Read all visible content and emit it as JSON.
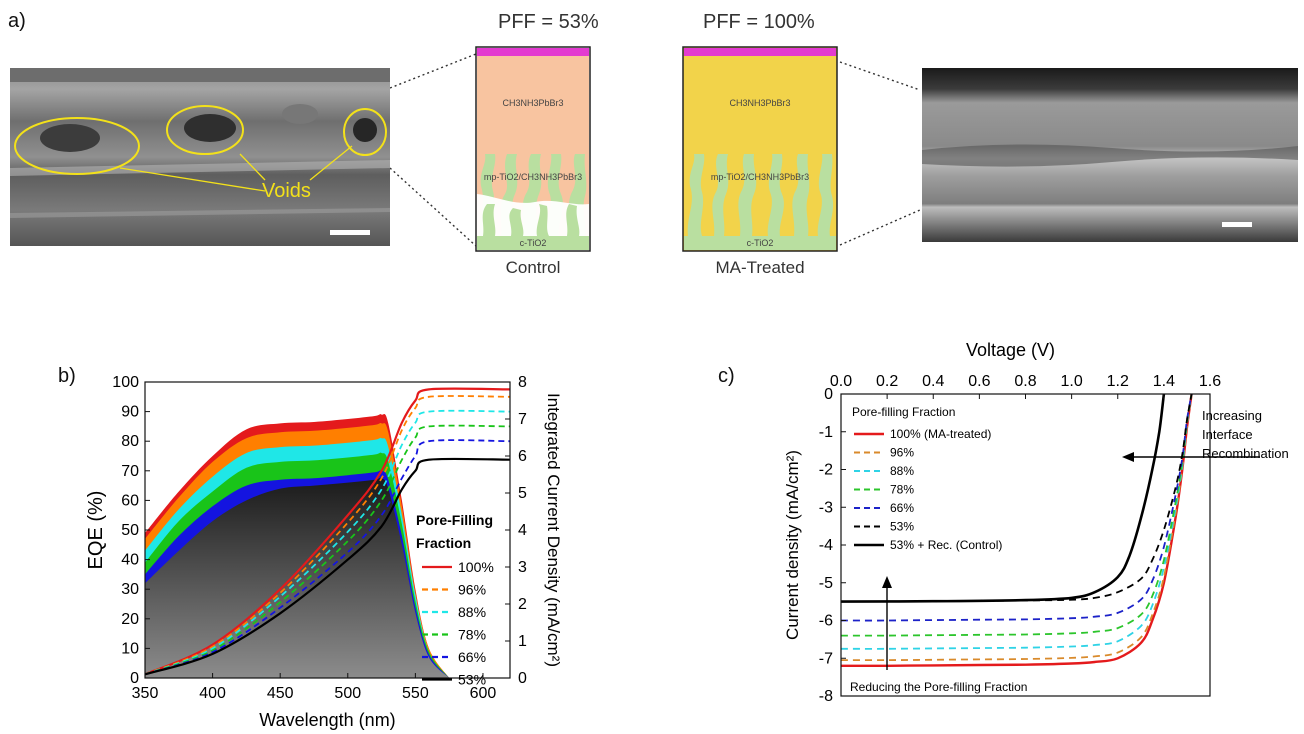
{
  "panel_a": {
    "label": "a)",
    "voids_label": "Voids",
    "pff_control": "PFF = 53%",
    "pff_treated": "PFF = 100%",
    "layer_top": "CH3NH3PbBr3",
    "layer_mid": "mp-TiO2/CH3NH3PbBr3",
    "layer_bottom": "c-TiO2",
    "control_caption": "Control",
    "treated_caption": "MA-Treated",
    "colors": {
      "perovskite_control": "#f8c4a0",
      "perovskite_treated": "#f2d34a",
      "tio2": "#b9dfa0",
      "contact": "#e33ad0",
      "voids": "#f3e11a"
    }
  },
  "panel_b": {
    "label": "b)",
    "xlabel": "Wavelength (nm)",
    "ylabel_left": "EQE (%)",
    "ylabel_right": "Integrated Current Density (mA/cm²)",
    "x_ticks": [
      "350",
      "400",
      "450",
      "500",
      "550",
      "600"
    ],
    "y_left_ticks": [
      "0",
      "10",
      "20",
      "30",
      "40",
      "50",
      "60",
      "70",
      "80",
      "90",
      "100"
    ],
    "y_right_ticks": [
      "0",
      "1",
      "2",
      "3",
      "4",
      "5",
      "6",
      "7",
      "8"
    ],
    "legend_title_1": "Pore-Filling",
    "legend_title_2": "Fraction",
    "legend": [
      "100%",
      "96%",
      "88%",
      "78%",
      "66%",
      "53%"
    ],
    "colors": [
      "#e41a1c",
      "#ff7f00",
      "#1fe7e7",
      "#19c419",
      "#1414e0",
      "#000000"
    ]
  },
  "panel_c": {
    "label": "c)",
    "xlabel": "Voltage (V)",
    "ylabel": "Current density (mA/cm²)",
    "x_ticks": [
      "0.0",
      "0.2",
      "0.4",
      "0.6",
      "0.8",
      "1.0",
      "1.2",
      "1.4",
      "1.6"
    ],
    "y_ticks": [
      "0",
      "-1",
      "-2",
      "-3",
      "-4",
      "-5",
      "-6",
      "-7",
      "-8"
    ],
    "legend_title": "Pore-filling Fraction",
    "legend": [
      "100% (MA-treated)",
      "96%",
      "88%",
      "78%",
      "66%",
      "53%",
      "53% + Rec. (Control)"
    ],
    "annotation_recombination": [
      "Increasing",
      "Interface",
      "Recombination"
    ],
    "annotation_pore": "Reducing the Pore-filling Fraction",
    "colors": [
      "#e41a1c",
      "#d98a2b",
      "#2fd3e6",
      "#2cc52c",
      "#1c22c8",
      "#000000",
      "#000000"
    ]
  },
  "chart_data": [
    {
      "type": "area",
      "xlabel": "Wavelength (nm)",
      "ylabel": "EQE (%)",
      "xlim": [
        350,
        620
      ],
      "ylim": [
        0,
        100
      ],
      "x": [
        350,
        375,
        400,
        425,
        450,
        475,
        500,
        520,
        525,
        530,
        540,
        550,
        560,
        575
      ],
      "series": [
        {
          "name": "100%",
          "values": [
            49,
            63,
            75,
            84,
            86,
            86.5,
            87.5,
            88.5,
            89,
            86,
            60,
            30,
            10,
            0
          ]
        },
        {
          "name": "96%",
          "values": [
            47,
            61,
            73,
            81,
            83,
            83.5,
            84.5,
            85.5,
            86,
            83,
            58,
            29,
            10,
            0
          ]
        },
        {
          "name": "88%",
          "values": [
            43,
            57,
            68,
            76,
            78,
            78.5,
            79.5,
            80.5,
            81,
            78,
            55,
            28,
            9,
            0
          ]
        },
        {
          "name": "78%",
          "values": [
            39,
            53,
            63,
            71,
            73,
            73.5,
            74.5,
            75.5,
            76,
            73,
            52,
            26,
            9,
            0
          ]
        },
        {
          "name": "66%",
          "values": [
            35,
            48,
            58,
            65,
            67,
            67.5,
            68.5,
            69.5,
            70,
            67,
            48,
            24,
            8,
            0
          ]
        },
        {
          "name": "53%",
          "values": [
            32,
            43,
            53,
            60,
            64,
            65,
            66,
            67,
            67.5,
            64,
            45,
            22,
            7,
            0
          ]
        }
      ],
      "integrated_current_mA_cm2": {
        "ylim": [
          0,
          8
        ],
        "x": [
          350,
          400,
          450,
          500,
          525,
          540,
          550,
          560,
          620
        ],
        "series": [
          {
            "name": "100%",
            "values": [
              0.1,
              0.9,
              2.4,
              4.4,
              5.6,
              6.9,
              7.5,
              7.8,
              7.8
            ]
          },
          {
            "name": "96%",
            "values": [
              0.1,
              0.85,
              2.3,
              4.2,
              5.4,
              6.7,
              7.3,
              7.6,
              7.6
            ]
          },
          {
            "name": "88%",
            "values": [
              0.1,
              0.8,
              2.2,
              3.95,
              5.1,
              6.3,
              6.9,
              7.2,
              7.2
            ]
          },
          {
            "name": "78%",
            "values": [
              0.1,
              0.75,
              2.05,
              3.7,
              4.8,
              5.9,
              6.5,
              6.8,
              6.8
            ]
          },
          {
            "name": "66%",
            "values": [
              0.1,
              0.7,
              1.9,
              3.4,
              4.4,
              5.4,
              6.0,
              6.4,
              6.4
            ]
          },
          {
            "name": "53%",
            "values": [
              0.1,
              0.65,
              1.75,
              3.2,
              4.1,
              5.1,
              5.6,
              5.9,
              5.9
            ]
          }
        ]
      }
    },
    {
      "type": "line",
      "xlabel": "Voltage (V)",
      "ylabel": "Current density (mA/cm²)",
      "xlim": [
        0,
        1.6
      ],
      "ylim": [
        -8,
        0
      ],
      "x": [
        0.0,
        0.2,
        0.4,
        0.6,
        0.8,
        1.0,
        1.1,
        1.2,
        1.3,
        1.35,
        1.4,
        1.45,
        1.48,
        1.5,
        1.52
      ],
      "series": [
        {
          "name": "100% (MA-treated)",
          "values": [
            -7.2,
            -7.2,
            -7.19,
            -7.18,
            -7.17,
            -7.14,
            -7.1,
            -7.0,
            -6.6,
            -6.0,
            -5.0,
            -3.3,
            -2.0,
            -0.9,
            0
          ]
        },
        {
          "name": "96%",
          "values": [
            -7.05,
            -7.05,
            -7.04,
            -7.03,
            -7.02,
            -6.99,
            -6.95,
            -6.85,
            -6.45,
            -5.85,
            -4.85,
            -3.2,
            -1.95,
            -0.85,
            0
          ]
        },
        {
          "name": "88%",
          "values": [
            -6.75,
            -6.75,
            -6.74,
            -6.73,
            -6.72,
            -6.69,
            -6.65,
            -6.55,
            -6.15,
            -5.6,
            -4.6,
            -3.05,
            -1.9,
            -0.8,
            0
          ]
        },
        {
          "name": "78%",
          "values": [
            -6.4,
            -6.4,
            -6.39,
            -6.38,
            -6.37,
            -6.34,
            -6.3,
            -6.2,
            -5.85,
            -5.35,
            -4.4,
            -2.9,
            -1.8,
            -0.75,
            0
          ]
        },
        {
          "name": "66%",
          "values": [
            -6.0,
            -6.0,
            -5.99,
            -5.98,
            -5.97,
            -5.94,
            -5.9,
            -5.8,
            -5.45,
            -4.95,
            -4.05,
            -2.7,
            -1.7,
            -0.7,
            0
          ]
        },
        {
          "name": "53%",
          "values": [
            -5.5,
            -5.5,
            -5.49,
            -5.48,
            -5.47,
            -5.45,
            -5.4,
            -5.25,
            -4.9,
            -4.4,
            -3.6,
            -2.5,
            -1.6,
            -0.7,
            0
          ]
        }
      ],
      "control_series": {
        "name": "53% + Rec. (Control)",
        "x": [
          0.0,
          0.4,
          0.8,
          1.0,
          1.1,
          1.2,
          1.25,
          1.3,
          1.35,
          1.38,
          1.4
        ],
        "values": [
          -5.5,
          -5.49,
          -5.46,
          -5.4,
          -5.25,
          -4.85,
          -4.3,
          -3.3,
          -2.0,
          -1.0,
          0
        ]
      }
    }
  ]
}
